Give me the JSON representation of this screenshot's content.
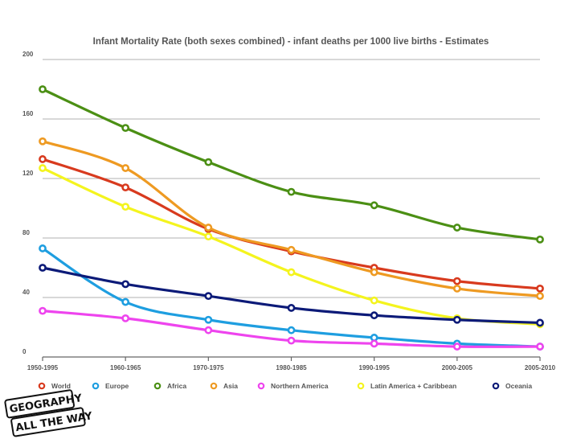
{
  "chart_data": {
    "type": "line",
    "title": "Infant Mortality Rate (both sexes combined) - infant deaths per 1000 live births - Estimates",
    "xlabel": "",
    "ylabel": "",
    "ylim": [
      0,
      200
    ],
    "yticks": [
      0,
      40,
      80,
      120,
      160,
      200
    ],
    "grid": true,
    "legend_position": "bottom",
    "categories": [
      "1950-1995",
      "1960-1965",
      "1970-1975",
      "1980-1985",
      "1990-1995",
      "2000-2005",
      "2005-2010"
    ],
    "series": [
      {
        "name": "World",
        "color": "#d83a1e",
        "values": [
          133,
          114,
          86,
          71,
          60,
          51,
          46
        ]
      },
      {
        "name": "Europe",
        "color": "#1e9ee0",
        "values": [
          73,
          37,
          25,
          18,
          13,
          9,
          7
        ]
      },
      {
        "name": "Africa",
        "color": "#4b8f14",
        "values": [
          180,
          154,
          131,
          111,
          102,
          87,
          79
        ]
      },
      {
        "name": "Asia",
        "color": "#ee9a22",
        "values": [
          145,
          127,
          87,
          72,
          57,
          46,
          41
        ]
      },
      {
        "name": "Northern America",
        "color": "#ee44ee",
        "values": [
          31,
          26,
          18,
          11,
          9,
          7,
          7
        ]
      },
      {
        "name": "Latin America + Caribbean",
        "color": "#f4f41e",
        "values": [
          127,
          101,
          81,
          57,
          38,
          26,
          22
        ]
      },
      {
        "name": "Oceania",
        "color": "#0c1a78",
        "values": [
          60,
          49,
          41,
          33,
          28,
          25,
          23
        ]
      }
    ]
  },
  "logo": {
    "line1": "GEOGRAPHY",
    "line2": "ALL THE WAY"
  }
}
